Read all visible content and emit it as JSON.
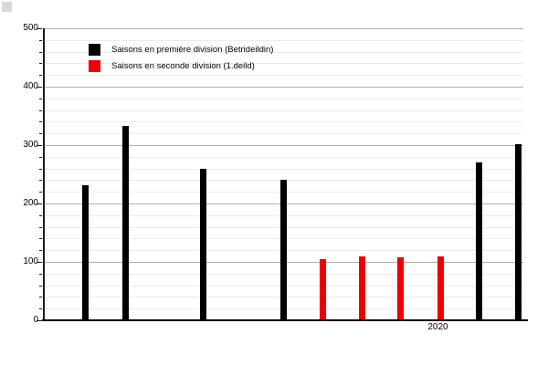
{
  "chart_data": {
    "type": "bar",
    "title": "",
    "xlabel": "",
    "ylabel": "",
    "ylim": [
      0,
      500
    ],
    "y_major_ticks": [
      0,
      100,
      200,
      300,
      400,
      500
    ],
    "y_minor_step": 20,
    "grid": true,
    "legend_position": "top-left-inside",
    "colors": {
      "grid_major": "#b0b0b0",
      "grid_minor": "#ebebeb",
      "axis": "#000000",
      "first_division": "#000000",
      "second_division": "#ee0000"
    },
    "series": [
      {
        "name": "Saisons en première division (Betrideildin)",
        "color": "#000000",
        "points": [
          {
            "x_frac": 0.086,
            "value": 232
          },
          {
            "x_frac": 0.17,
            "value": 333
          },
          {
            "x_frac": 0.333,
            "value": 260
          },
          {
            "x_frac": 0.499,
            "value": 241
          },
          {
            "x_frac": 0.907,
            "value": 271
          },
          {
            "x_frac": 0.99,
            "value": 302
          }
        ]
      },
      {
        "name": "Saisons en seconde division (1.deild)",
        "color": "#ee0000",
        "points": [
          {
            "x_frac": 0.581,
            "value": 105
          },
          {
            "x_frac": 0.663,
            "value": 110
          },
          {
            "x_frac": 0.743,
            "value": 108
          },
          {
            "x_frac": 0.827,
            "value": 110
          }
        ]
      }
    ],
    "x_tick": {
      "label": "2020",
      "x_frac": 0.822
    }
  },
  "legend": {
    "items": [
      {
        "label": "Saisons en première division (Betrideildin)",
        "color": "#000000"
      },
      {
        "label": "Saisons en seconde division (1.deild)",
        "color": "#ee0000"
      }
    ]
  }
}
